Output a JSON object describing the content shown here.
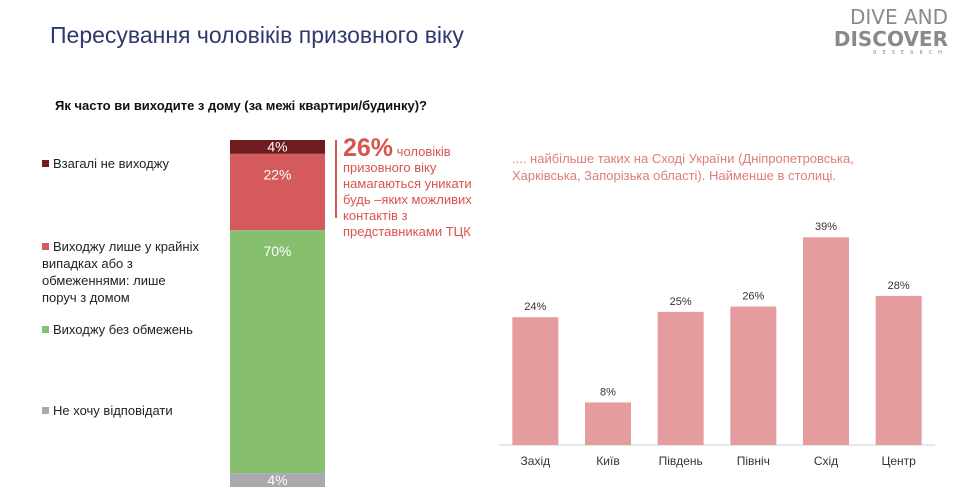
{
  "header": {
    "title": "Пересування чоловіків призовного віку",
    "logo": [
      "DIVE AND",
      "DISCOVER",
      "RESEARCH"
    ]
  },
  "chart_data": [
    {
      "type": "stacked-bar",
      "title": "Як часто ви виходите з дому (за межі квартири/будинку)?",
      "ylim": [
        0,
        100
      ],
      "series": [
        {
          "name": "Взагалі не виходжу",
          "color": "#6e1c1f",
          "values": [
            4
          ],
          "value_labels": [
            "4%"
          ]
        },
        {
          "name": "Виходжу лише у крайніх випадках або з обмеженнями: лише поруч з домом",
          "color": "#d45a5b",
          "values": [
            22
          ],
          "value_labels": [
            "22%"
          ]
        },
        {
          "name": "Виходжу без обмежень",
          "color": "#86c06f",
          "values": [
            70
          ],
          "value_labels": [
            "70%"
          ]
        },
        {
          "name": "Не хочу відповідати",
          "color": "#a9a9ae",
          "values": [
            4
          ],
          "value_labels": [
            "4%"
          ]
        }
      ],
      "annotation": {
        "highlight": "26%",
        "text": "чоловіків призовного віку намагаються уникати будь –яких можливих контактів з представниками ТЦК"
      }
    },
    {
      "type": "bar",
      "subtitle": ".... найбільше таких на Сході України (Дніпропетровська, Харківська, Запорізька області). Найменше в столиці.",
      "categories": [
        "Захід",
        "Київ",
        "Південь",
        "Північ",
        "Схід",
        "Центр"
      ],
      "values": [
        24,
        8,
        25,
        26,
        39,
        28
      ],
      "value_labels": [
        "24%",
        "8%",
        "25%",
        "26%",
        "39%",
        "28%"
      ],
      "color": "#e49c9e",
      "ylim": [
        0,
        40
      ]
    }
  ]
}
